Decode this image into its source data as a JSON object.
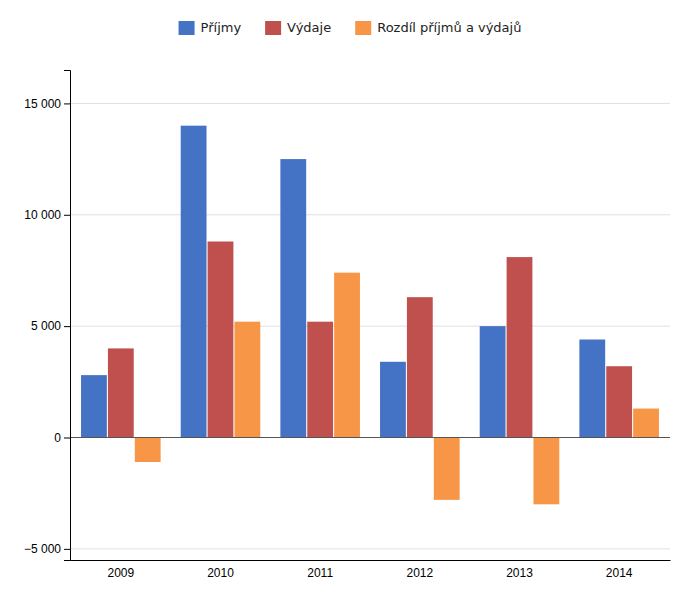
{
  "chart_data": {
    "type": "bar",
    "categories": [
      "2009",
      "2010",
      "2011",
      "2012",
      "2013",
      "2014"
    ],
    "series": [
      {
        "name": "Příjmy",
        "color": "#4472C4",
        "values": [
          2800,
          14000,
          12500,
          3400,
          5000,
          4400
        ]
      },
      {
        "name": "Výdaje",
        "color": "#C0504D",
        "values": [
          4000,
          8800,
          5200,
          6300,
          8100,
          3200
        ]
      },
      {
        "name": "Rozdíl příjmů a výdajů",
        "color": "#F79646",
        "values": [
          -1100,
          5200,
          7400,
          -2800,
          -3000,
          1300
        ]
      }
    ],
    "ylim": [
      -5500,
      16500
    ],
    "yticks": [
      {
        "value": -5000,
        "label": "−5 000"
      },
      0,
      {
        "value": 5000,
        "label": "5 000"
      },
      {
        "value": 10000,
        "label": "10 000"
      },
      {
        "value": 15000,
        "label": "15 000"
      }
    ],
    "grid": true,
    "legend": "top"
  }
}
